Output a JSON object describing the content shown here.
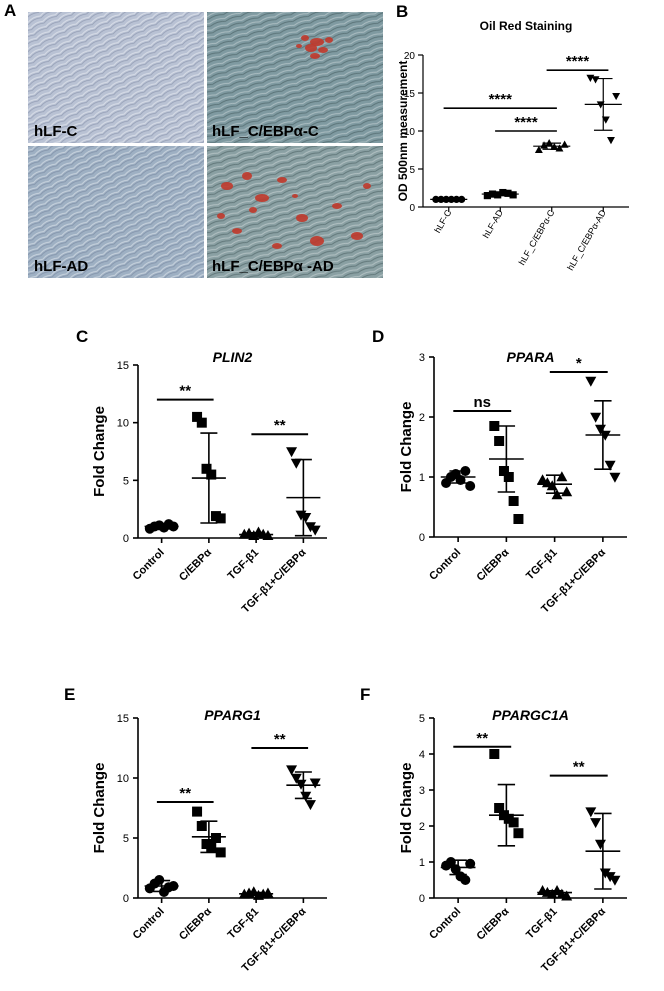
{
  "panel_letters": [
    "A",
    "B",
    "C",
    "D",
    "E",
    "F"
  ],
  "micrographs": [
    {
      "label": "hLF-C",
      "bg": "#b9c2d4",
      "stained": false
    },
    {
      "label": "hLF_C/EBPα-C",
      "bg": "#7f9aa1",
      "stained": true
    },
    {
      "label": "hLF-AD",
      "bg": "#9eb0c3",
      "stained": false
    },
    {
      "label": "hLF_C/EBPα -AD",
      "bg": "#8aa0a3",
      "stained": true
    }
  ],
  "colors": {
    "ink": "#000000",
    "stain": "#c0392b"
  },
  "chart_data": [
    {
      "type": "scatter",
      "panel": "B",
      "title": "Oil Red Staining",
      "ylabel": "OD 500nm measurement",
      "categories": [
        "hLF-C",
        "hLF-AD",
        "hLF_C/EBPα-C",
        "hLF_C/EBPα-AD"
      ],
      "ylim": [
        0,
        20
      ],
      "yticks": [
        0,
        5,
        10,
        15,
        20
      ],
      "markers": [
        "circle",
        "square",
        "triangle-up",
        "triangle-down"
      ],
      "points": [
        [
          1,
          1,
          1,
          1,
          1,
          1
        ],
        [
          1.5,
          1.7,
          1.6,
          1.9,
          1.8,
          1.6
        ],
        [
          7.5,
          8.1,
          8.4,
          7.9,
          7.7,
          8.2
        ],
        [
          17,
          16.8,
          13.5,
          11.5,
          8.8,
          14.6
        ]
      ],
      "mean": [
        1.0,
        1.7,
        8.0,
        13.5
      ],
      "sd": [
        0.05,
        0.2,
        0.4,
        3.4
      ],
      "significance": [
        {
          "from": 0,
          "to": 2,
          "y": 13,
          "label": "****"
        },
        {
          "from": 1,
          "to": 2,
          "y": 10,
          "label": "****"
        },
        {
          "from": 2,
          "to": 3,
          "y": 18,
          "label": "****"
        }
      ]
    },
    {
      "type": "scatter",
      "panel": "C",
      "title": "PLIN2",
      "ylabel": "Fold Change",
      "categories": [
        "Control",
        "C/EBPα",
        "TGF-β1",
        "TGF-β1+C/EBPα"
      ],
      "ylim": [
        0,
        15
      ],
      "yticks": [
        0,
        5,
        10,
        15
      ],
      "markers": [
        "circle",
        "square",
        "triangle-up",
        "triangle-down"
      ],
      "points": [
        [
          0.8,
          1.0,
          1.1,
          0.9,
          1.2,
          1.0
        ],
        [
          10.5,
          10.0,
          6.0,
          5.5,
          1.9,
          1.7
        ],
        [
          0.3,
          0.4,
          0.2,
          0.5,
          0.3,
          0.2
        ],
        [
          7.5,
          6.5,
          2.0,
          1.8,
          1.0,
          0.7
        ]
      ],
      "mean": [
        1.0,
        5.2,
        0.3,
        3.5
      ],
      "sd": [
        0.2,
        3.9,
        0.15,
        3.3
      ],
      "significance": [
        {
          "from": 0,
          "to": 1,
          "y": 12,
          "label": "**"
        },
        {
          "from": 2,
          "to": 3,
          "y": 9,
          "label": "**"
        }
      ]
    },
    {
      "type": "scatter",
      "panel": "D",
      "title": "PPARA",
      "ylabel": "Fold Change",
      "categories": [
        "Control",
        "C/EBPα",
        "TGF-β1",
        "TGF-β1+C/EBPα"
      ],
      "ylim": [
        0,
        3
      ],
      "yticks": [
        0,
        1,
        2,
        3
      ],
      "markers": [
        "circle",
        "square",
        "triangle-up",
        "triangle-down"
      ],
      "points": [
        [
          0.9,
          1.0,
          1.05,
          0.95,
          1.1,
          0.85
        ],
        [
          1.85,
          1.6,
          1.1,
          1.0,
          0.6,
          0.3
        ],
        [
          0.95,
          0.9,
          0.85,
          0.7,
          1.0,
          0.75
        ],
        [
          2.6,
          2.0,
          1.8,
          1.7,
          1.2,
          1.0
        ]
      ],
      "mean": [
        1.0,
        1.3,
        0.88,
        1.7
      ],
      "sd": [
        0.1,
        0.55,
        0.15,
        0.57
      ],
      "significance": [
        {
          "from": 0,
          "to": 1,
          "y": 2.1,
          "label": "ns"
        },
        {
          "from": 2,
          "to": 3,
          "y": 2.75,
          "label": "*"
        }
      ]
    },
    {
      "type": "scatter",
      "panel": "E",
      "title": "PPARG1",
      "ylabel": "Fold Change",
      "categories": [
        "Control",
        "C/EBPα",
        "TGF-β1",
        "TGF-β1+C/EBPα"
      ],
      "ylim": [
        0,
        15
      ],
      "yticks": [
        0,
        5,
        10,
        15
      ],
      "markers": [
        "circle",
        "square",
        "triangle-up",
        "triangle-down"
      ],
      "points": [
        [
          0.8,
          1.2,
          1.5,
          0.5,
          0.9,
          1.0
        ],
        [
          7.2,
          6.0,
          4.5,
          4.2,
          5.0,
          3.8
        ],
        [
          0.3,
          0.4,
          0.5,
          0.2,
          0.3,
          0.4
        ],
        [
          10.7,
          10.0,
          9.5,
          8.5,
          7.8,
          9.6
        ]
      ],
      "mean": [
        1.0,
        5.1,
        0.35,
        9.4
      ],
      "sd": [
        0.45,
        1.3,
        0.1,
        1.1
      ],
      "significance": [
        {
          "from": 0,
          "to": 1,
          "y": 8,
          "label": "**"
        },
        {
          "from": 2,
          "to": 3,
          "y": 12.5,
          "label": "**"
        }
      ]
    },
    {
      "type": "scatter",
      "panel": "F",
      "title": "PPARGC1A",
      "ylabel": "Fold Change",
      "categories": [
        "Control",
        "C/EBPα",
        "TGF-β1",
        "TGF-β1+C/EBPα"
      ],
      "ylim": [
        0,
        5
      ],
      "yticks": [
        0,
        1,
        2,
        3,
        4,
        5
      ],
      "markers": [
        "circle",
        "square",
        "triangle-up",
        "triangle-down"
      ],
      "points": [
        [
          0.9,
          1.0,
          0.8,
          0.6,
          0.5,
          0.95
        ],
        [
          4.0,
          2.5,
          2.3,
          2.2,
          2.1,
          1.8
        ],
        [
          0.2,
          0.15,
          0.1,
          0.2,
          0.1,
          0.05
        ],
        [
          2.4,
          2.1,
          1.5,
          0.7,
          0.6,
          0.5
        ]
      ],
      "mean": [
        0.85,
        2.3,
        0.15,
        1.3
      ],
      "sd": [
        0.2,
        0.85,
        0.05,
        1.05
      ],
      "significance": [
        {
          "from": 0,
          "to": 1,
          "y": 4.2,
          "label": "**"
        },
        {
          "from": 2,
          "to": 3,
          "y": 3.4,
          "label": "**"
        }
      ]
    }
  ]
}
